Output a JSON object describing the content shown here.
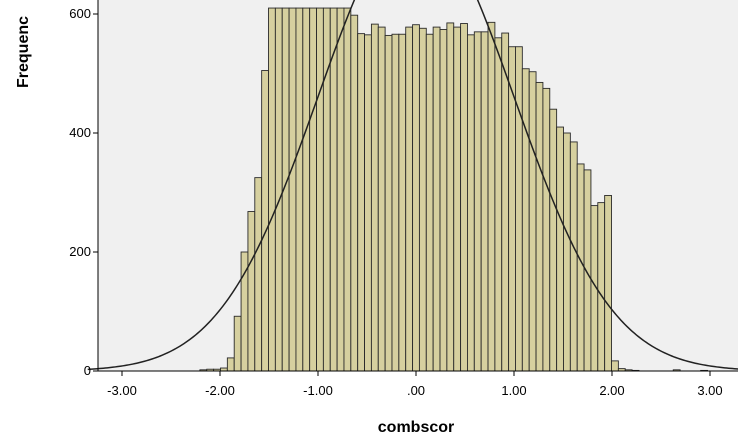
{
  "chart_data": {
    "type": "bar",
    "xlabel": "combscor",
    "ylabel": "Frequenc",
    "xlim": [
      -3.35,
      3.35
    ],
    "ylim": [
      0,
      610
    ],
    "x_ticks": [
      -3,
      -2,
      -1,
      0,
      1,
      2,
      3
    ],
    "x_tick_labels": [
      "-3.00",
      "-2.00",
      "-1.00",
      ".00",
      "1.00",
      "2.00",
      "3.00"
    ],
    "y_ticks": [
      0,
      200,
      400,
      600
    ],
    "y_tick_labels": [
      "0",
      "200",
      "400",
      "600"
    ],
    "grid": false,
    "bin_width": 0.07,
    "bins": [
      {
        "x": -2.17,
        "count": 2
      },
      {
        "x": -2.1,
        "count": 3
      },
      {
        "x": -2.03,
        "count": 3
      },
      {
        "x": -1.96,
        "count": 5
      },
      {
        "x": -1.89,
        "count": 22
      },
      {
        "x": -1.82,
        "count": 92
      },
      {
        "x": -1.75,
        "count": 200
      },
      {
        "x": -1.68,
        "count": 268
      },
      {
        "x": -1.61,
        "count": 325
      },
      {
        "x": -1.54,
        "count": 505
      },
      {
        "x": -1.47,
        "count": 610
      },
      {
        "x": -1.4,
        "count": 610
      },
      {
        "x": -1.33,
        "count": 610
      },
      {
        "x": -1.26,
        "count": 610
      },
      {
        "x": -1.19,
        "count": 610
      },
      {
        "x": -1.12,
        "count": 610
      },
      {
        "x": -1.05,
        "count": 610
      },
      {
        "x": -0.98,
        "count": 610
      },
      {
        "x": -0.91,
        "count": 610
      },
      {
        "x": -0.84,
        "count": 610
      },
      {
        "x": -0.77,
        "count": 610
      },
      {
        "x": -0.7,
        "count": 610
      },
      {
        "x": -0.63,
        "count": 598
      },
      {
        "x": -0.56,
        "count": 567
      },
      {
        "x": -0.49,
        "count": 565
      },
      {
        "x": -0.42,
        "count": 583
      },
      {
        "x": -0.35,
        "count": 578
      },
      {
        "x": -0.28,
        "count": 564
      },
      {
        "x": -0.21,
        "count": 566
      },
      {
        "x": -0.14,
        "count": 566
      },
      {
        "x": -0.07,
        "count": 578
      },
      {
        "x": 0.0,
        "count": 582
      },
      {
        "x": 0.07,
        "count": 576
      },
      {
        "x": 0.14,
        "count": 566
      },
      {
        "x": 0.21,
        "count": 578
      },
      {
        "x": 0.28,
        "count": 574
      },
      {
        "x": 0.35,
        "count": 585
      },
      {
        "x": 0.42,
        "count": 578
      },
      {
        "x": 0.49,
        "count": 584
      },
      {
        "x": 0.56,
        "count": 565
      },
      {
        "x": 0.63,
        "count": 570
      },
      {
        "x": 0.7,
        "count": 570
      },
      {
        "x": 0.77,
        "count": 586
      },
      {
        "x": 0.84,
        "count": 560
      },
      {
        "x": 0.91,
        "count": 568
      },
      {
        "x": 0.98,
        "count": 545
      },
      {
        "x": 1.05,
        "count": 545
      },
      {
        "x": 1.12,
        "count": 508
      },
      {
        "x": 1.19,
        "count": 503
      },
      {
        "x": 1.26,
        "count": 485
      },
      {
        "x": 1.33,
        "count": 475
      },
      {
        "x": 1.4,
        "count": 440
      },
      {
        "x": 1.47,
        "count": 410
      },
      {
        "x": 1.54,
        "count": 400
      },
      {
        "x": 1.61,
        "count": 385
      },
      {
        "x": 1.68,
        "count": 348
      },
      {
        "x": 1.75,
        "count": 338
      },
      {
        "x": 1.82,
        "count": 278
      },
      {
        "x": 1.89,
        "count": 283
      },
      {
        "x": 1.96,
        "count": 295
      },
      {
        "x": 2.03,
        "count": 17
      },
      {
        "x": 2.1,
        "count": 4
      },
      {
        "x": 2.17,
        "count": 2
      },
      {
        "x": 2.24,
        "count": 1
      },
      {
        "x": 2.66,
        "count": 2
      },
      {
        "x": 2.94,
        "count": 1
      }
    ],
    "normal_curve": {
      "mean": 0.0,
      "sd": 1.0,
      "peak_count": 760
    },
    "colors": {
      "bar_fill": "#d6d09f",
      "bar_stroke": "#2a2a2a",
      "plot_bg": "#f0f0f0",
      "curve": "#222222"
    }
  }
}
